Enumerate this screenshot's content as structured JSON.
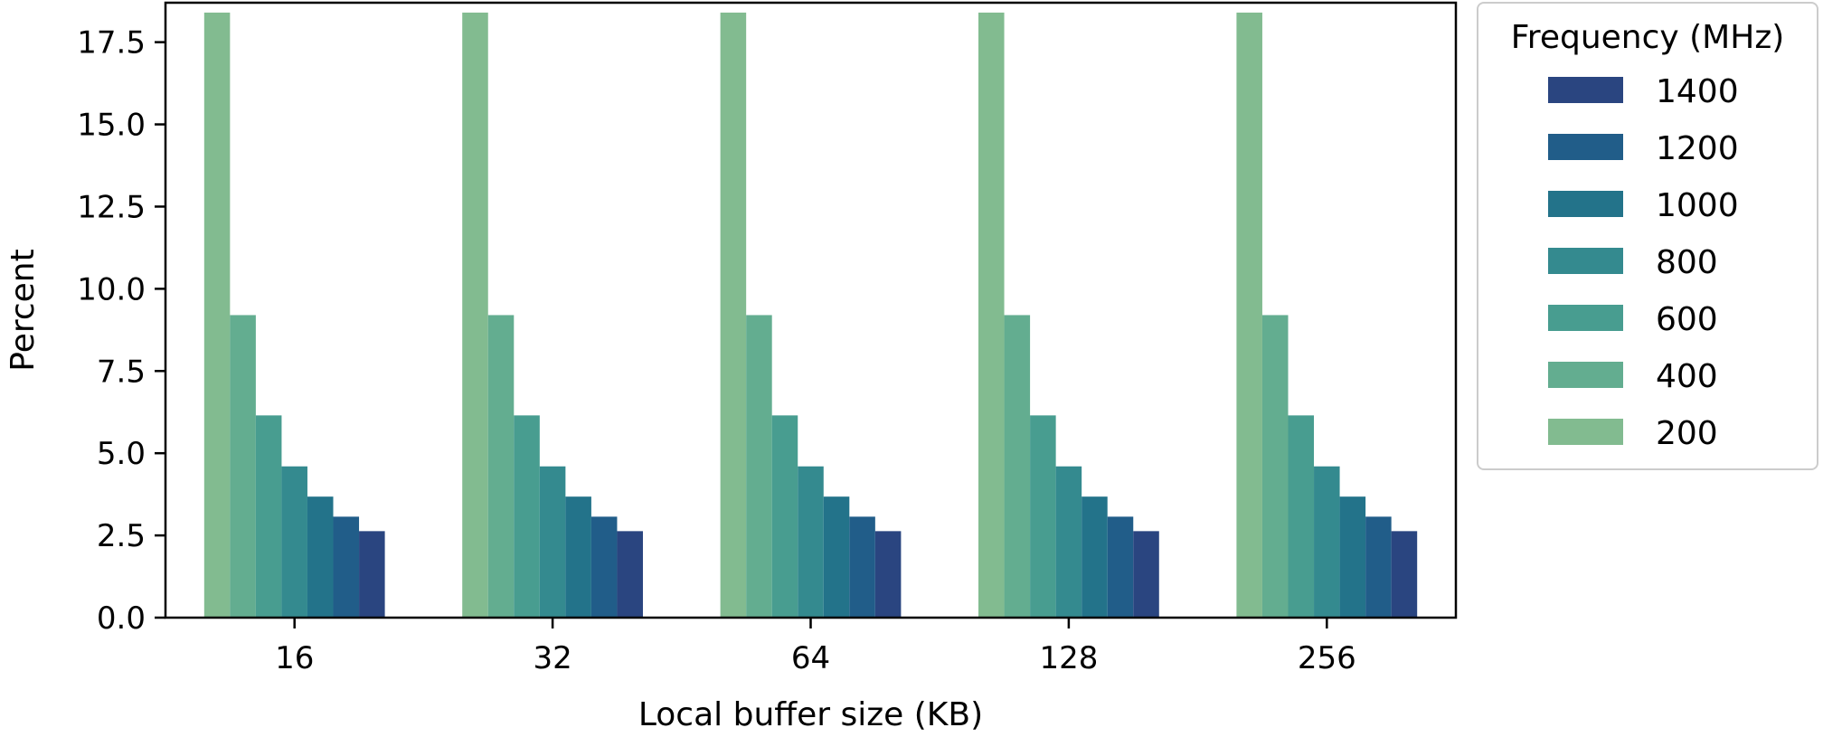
{
  "chart_data": {
    "type": "bar",
    "title": "",
    "xlabel": "Local buffer size (KB)",
    "ylabel": "Percent",
    "ylim": [
      0,
      18.7
    ],
    "yticks": [
      "0.0",
      "2.5",
      "5.0",
      "7.5",
      "10.0",
      "12.5",
      "15.0",
      "17.5"
    ],
    "categories": [
      "16",
      "32",
      "64",
      "128",
      "256"
    ],
    "legend_title": "Frequency (MHz)",
    "legend_position": "outside-right",
    "grid": false,
    "series": [
      {
        "name": "200",
        "color": "#82bb90",
        "values": [
          18.4,
          18.4,
          18.4,
          18.4,
          18.4
        ]
      },
      {
        "name": "400",
        "color": "#63ad90",
        "values": [
          9.2,
          9.2,
          9.2,
          9.2,
          9.2
        ]
      },
      {
        "name": "600",
        "color": "#489d90",
        "values": [
          6.15,
          6.15,
          6.15,
          6.15,
          6.15
        ]
      },
      {
        "name": "800",
        "color": "#348a8f",
        "values": [
          4.6,
          4.6,
          4.6,
          4.6,
          4.6
        ]
      },
      {
        "name": "1000",
        "color": "#23738a",
        "values": [
          3.68,
          3.68,
          3.68,
          3.68,
          3.68
        ]
      },
      {
        "name": "1200",
        "color": "#215d89",
        "values": [
          3.07,
          3.07,
          3.07,
          3.07,
          3.07
        ]
      },
      {
        "name": "1400",
        "color": "#2a4580",
        "values": [
          2.63,
          2.63,
          2.63,
          2.63,
          2.63
        ]
      }
    ]
  }
}
